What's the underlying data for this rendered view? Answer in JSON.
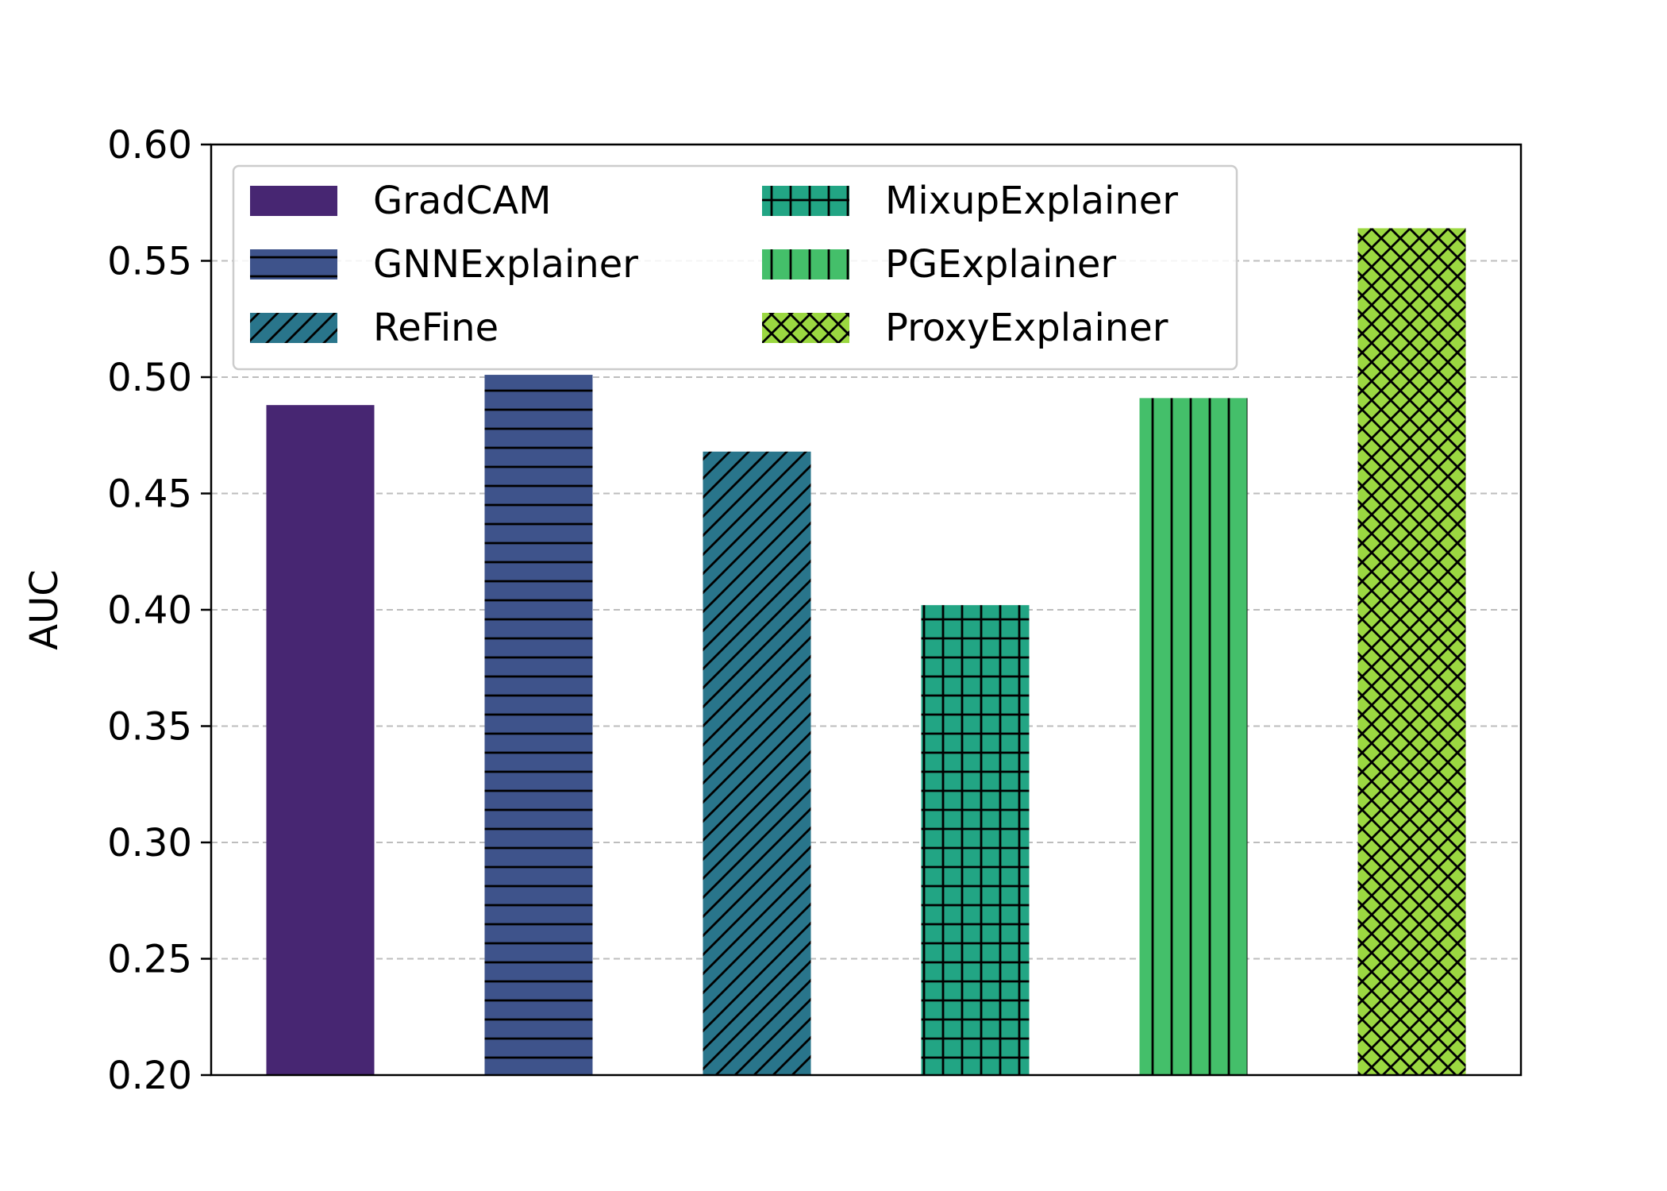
{
  "chart_data": {
    "type": "bar",
    "categories": [
      "GradCAM",
      "GNNExplainer",
      "ReFine",
      "MixupExplainer",
      "PGExplainer",
      "ProxyExplainer"
    ],
    "values": [
      0.488,
      0.501,
      0.468,
      0.402,
      0.491,
      0.564
    ],
    "series": [
      {
        "name": "GradCAM",
        "value": 0.488,
        "color": "#472672",
        "hatch": "none"
      },
      {
        "name": "GNNExplainer",
        "value": 0.501,
        "color": "#3e538b",
        "hatch": "horizontal"
      },
      {
        "name": "ReFine",
        "value": 0.468,
        "color": "#29758b",
        "hatch": "diagonal"
      },
      {
        "name": "MixupExplainer",
        "value": 0.402,
        "color": "#22a584",
        "hatch": "grid"
      },
      {
        "name": "PGExplainer",
        "value": 0.491,
        "color": "#44bf6a",
        "hatch": "vertical"
      },
      {
        "name": "ProxyExplainer",
        "value": 0.564,
        "color": "#9bd841",
        "hatch": "crosshatch"
      }
    ],
    "title": "",
    "xlabel": "",
    "ylabel": "AUC",
    "ylim": [
      0.2,
      0.6
    ],
    "yticks": [
      "0.20",
      "0.25",
      "0.30",
      "0.35",
      "0.40",
      "0.45",
      "0.50",
      "0.55",
      "0.60"
    ],
    "grid": "y-dashed",
    "legend_position": "top-left",
    "legend_columns": 2
  }
}
